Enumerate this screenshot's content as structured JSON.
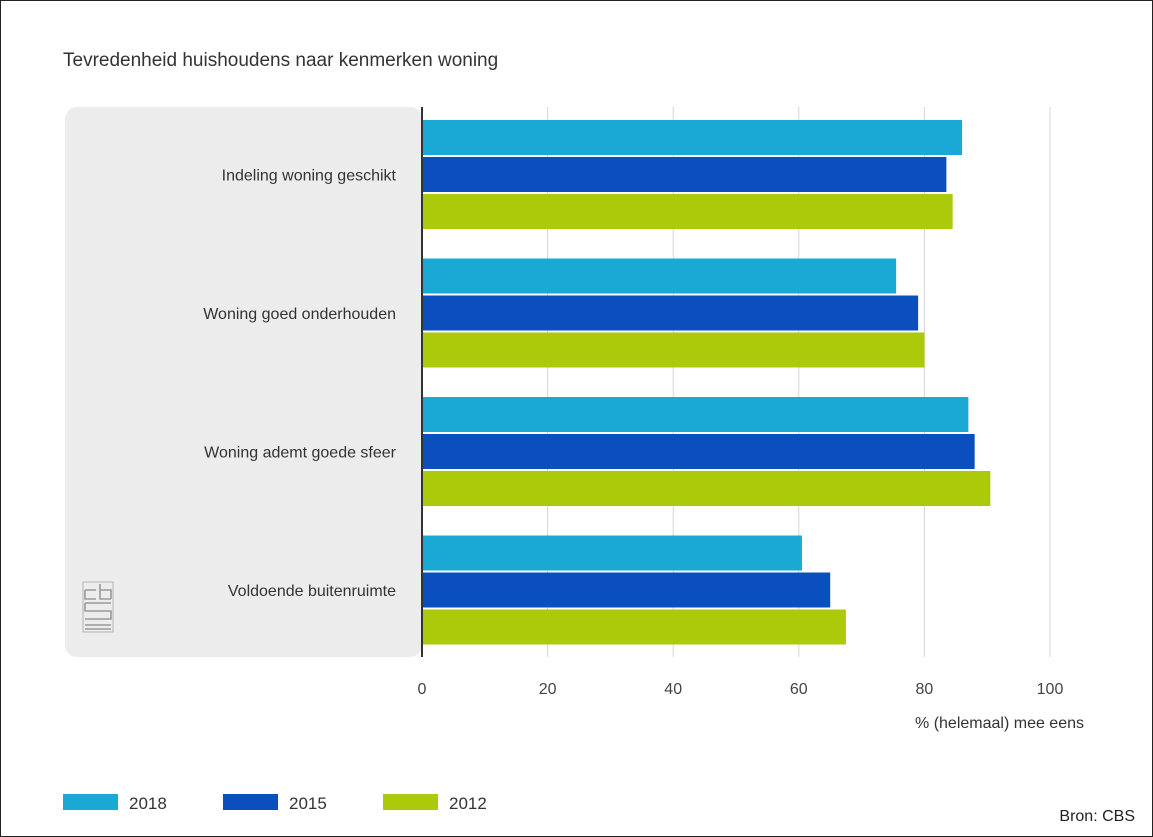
{
  "colors": {
    "panel": "#ececec",
    "grid": "#d6d6d6",
    "axis": "#333333",
    "series": [
      "#1aa8d4",
      "#0b4fbf",
      "#acc90a"
    ]
  },
  "logo": {
    "name": "cbs-logo-icon",
    "text": "cbs"
  },
  "source": "Bron: CBS",
  "chart_data": {
    "type": "bar",
    "orientation": "horizontal",
    "title": "Tevredenheid huishoudens naar kenmerken woning",
    "xlabel": "% (helemaal) mee eens",
    "ylabel": "",
    "xlim": [
      0,
      100
    ],
    "xticks": [
      0,
      20,
      40,
      60,
      80,
      100
    ],
    "grid": true,
    "legend_position": "bottom-left",
    "categories": [
      "Indeling woning geschikt",
      "Woning goed onderhouden",
      "Woning ademt goede sfeer",
      "Voldoende buitenruimte"
    ],
    "series": [
      {
        "name": "2018",
        "values": [
          86,
          75.5,
          87,
          60.5
        ]
      },
      {
        "name": "2015",
        "values": [
          83.5,
          79,
          88,
          65
        ]
      },
      {
        "name": "2012",
        "values": [
          84.5,
          80,
          90.5,
          67.5
        ]
      }
    ]
  }
}
